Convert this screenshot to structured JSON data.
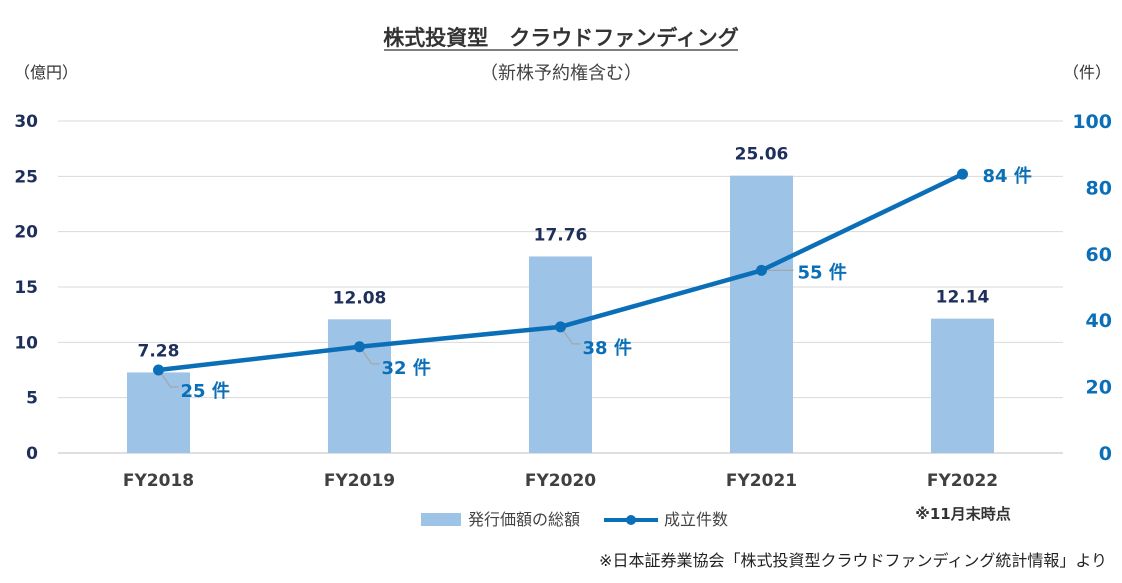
{
  "chart_data": {
    "type": "bar+line",
    "title": "株式投資型　クラウドファンディング",
    "subtitle": "（新株予約権含む）",
    "y_left_unit": "（億円）",
    "y_right_unit": "（件）",
    "categories": [
      "FY2018",
      "FY2019",
      "FY2020",
      "FY2021",
      "FY2022"
    ],
    "y_left_ticks": [
      "0",
      "5",
      "10",
      "15",
      "20",
      "25",
      "30"
    ],
    "y_right_ticks": [
      "0",
      "20",
      "40",
      "60",
      "80",
      "100"
    ],
    "y_left_range": [
      0,
      30
    ],
    "y_right_range": [
      0,
      100
    ],
    "grid": true,
    "legend_position": "bottom",
    "series": [
      {
        "name": "発行価額の総額",
        "type": "bar",
        "axis": "left",
        "color": "#9dc3e6",
        "values": [
          7.28,
          12.08,
          17.76,
          25.06,
          12.14
        ],
        "labels": [
          "7.28",
          "12.08",
          "17.76",
          "25.06",
          "12.14"
        ]
      },
      {
        "name": "成立件数",
        "type": "line",
        "axis": "right",
        "color": "#0b6fb8",
        "values": [
          25,
          32,
          38,
          55,
          84
        ],
        "labels": [
          "25 件",
          "32 件",
          "38 件",
          "55 件",
          "84 件"
        ]
      }
    ],
    "annotations": {
      "fy2022_note": "※11月末時点",
      "source": "※日本証券業協会「株式投資型クラウドファンディング統計情報」より"
    }
  }
}
